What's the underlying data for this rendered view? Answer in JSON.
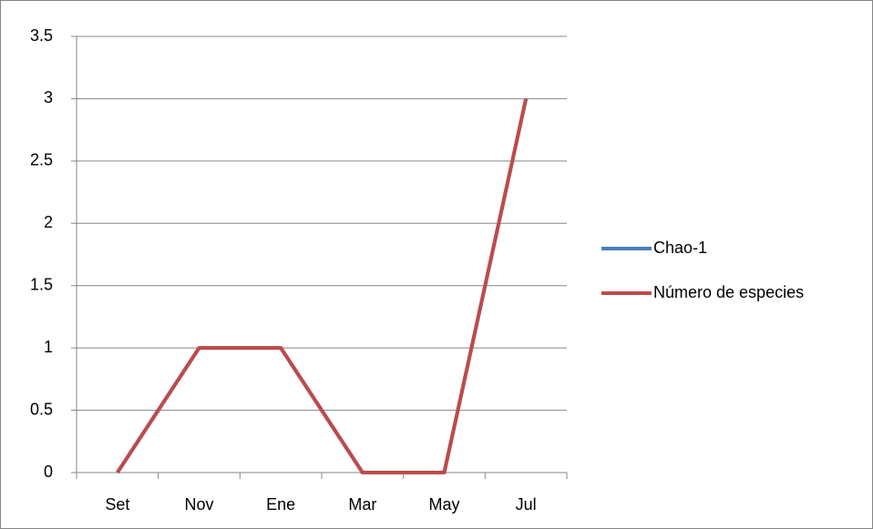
{
  "chart_data": {
    "type": "line",
    "categories": [
      "Set",
      "Nov",
      "Ene",
      "Mar",
      "May",
      "Jul"
    ],
    "series": [
      {
        "name": "Chao-1",
        "color": "#4a7ebb",
        "values": [
          0,
          1,
          1,
          0,
          0,
          3
        ]
      },
      {
        "name": "Número de especies",
        "color": "#be4b48",
        "values": [
          0,
          1,
          1,
          0,
          0,
          3
        ]
      }
    ],
    "ylim": [
      0,
      3.5
    ],
    "yticks": [
      0,
      0.5,
      1,
      1.5,
      2,
      2.5,
      3,
      3.5
    ],
    "grid": true,
    "legend": "right"
  }
}
